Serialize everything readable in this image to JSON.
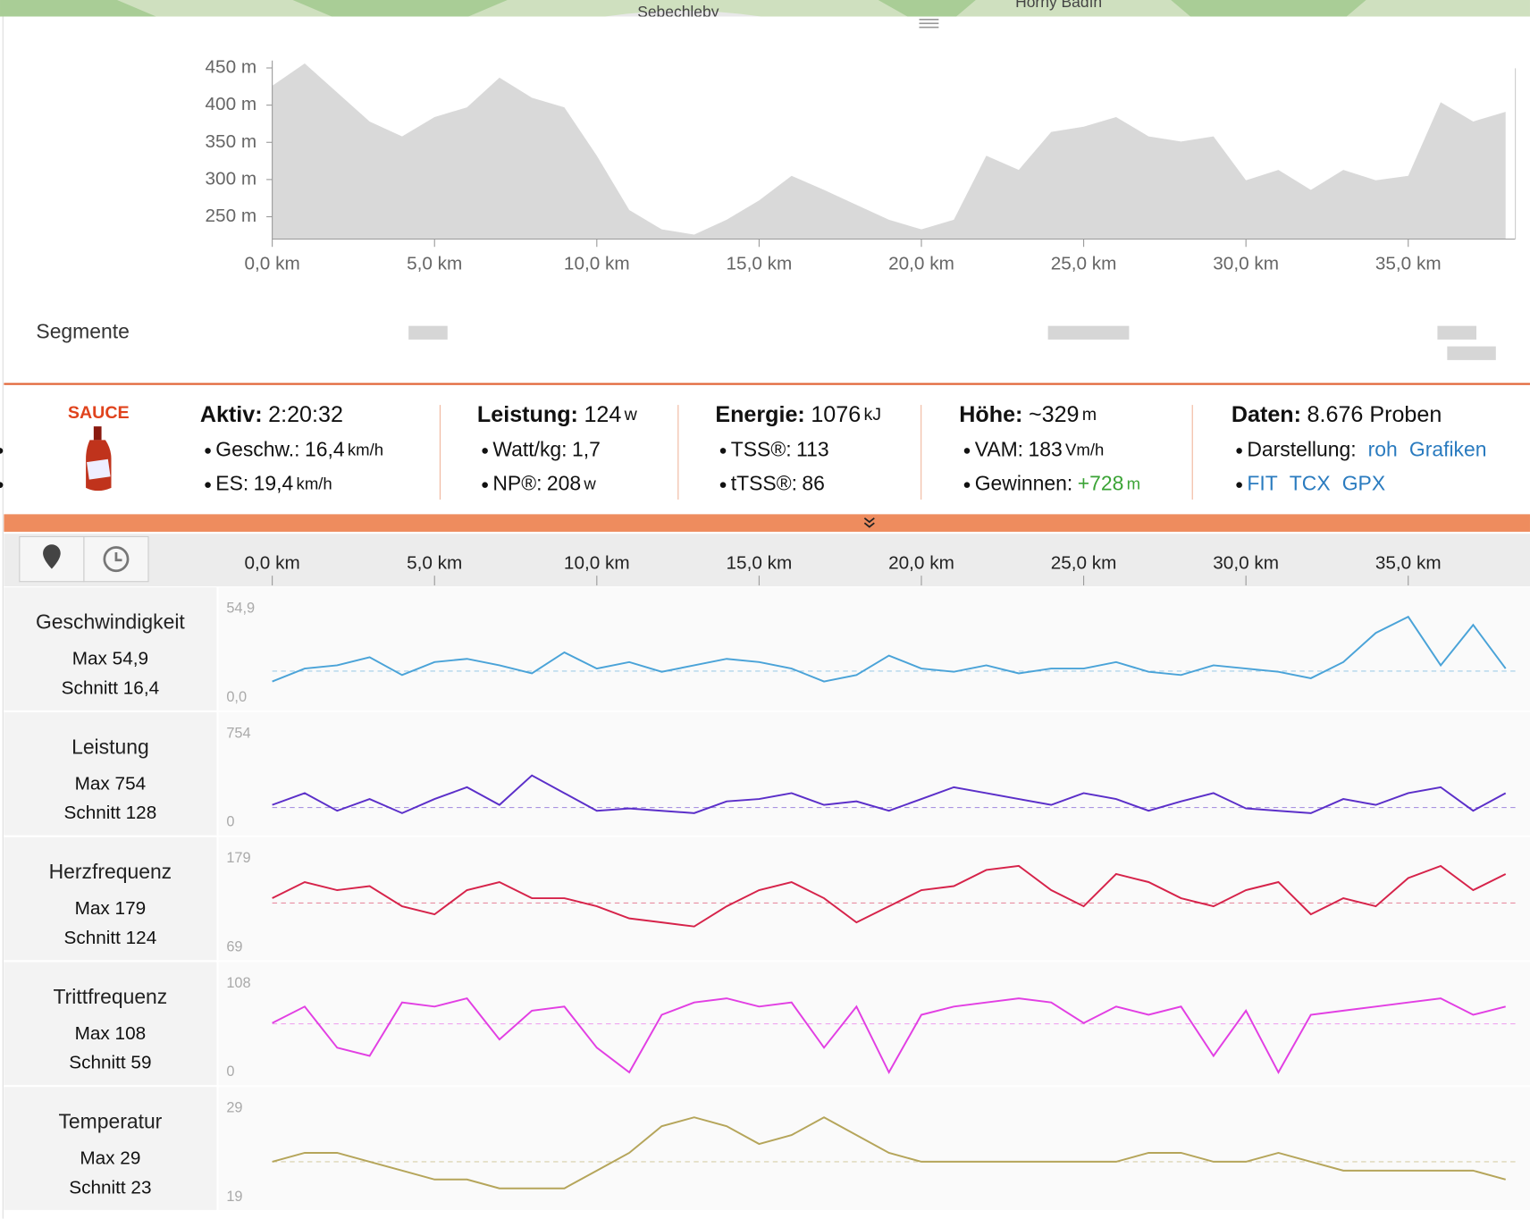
{
  "map": {
    "labels": [
      "Sebechleby",
      "Horný Badín"
    ]
  },
  "segments": {
    "title": "Segmente",
    "ranges": [
      [
        4.2,
        5.4
      ],
      [
        23.9,
        26.4
      ],
      [
        35.9,
        37.1
      ],
      [
        36.2,
        37.7
      ]
    ]
  },
  "stats": {
    "brand": "SAUCE",
    "groups": [
      {
        "title": "Aktiv:",
        "value": "2:20:32",
        "items": [
          {
            "label": "Geschw.:",
            "value": "16,4",
            "unit": "km/h"
          },
          {
            "label": "ES:",
            "value": "19,4",
            "unit": "km/h"
          }
        ]
      },
      {
        "title": "Leistung:",
        "value": "124",
        "unit": "w",
        "items": [
          {
            "label": "Watt/kg:",
            "value": "1,7"
          },
          {
            "label": "NP®:",
            "value": "208",
            "unit": "w"
          }
        ]
      },
      {
        "title": "Energie:",
        "value": "1076",
        "unit": "kJ",
        "items": [
          {
            "label": "TSS®:",
            "value": "113"
          },
          {
            "label": "tTSS®:",
            "value": "86"
          }
        ]
      },
      {
        "title": "Höhe:",
        "value": "~329",
        "unit": "m",
        "items": [
          {
            "label": "VAM:",
            "value": "183",
            "unit": "Vm/h"
          },
          {
            "label": "Gewinnen:",
            "value": "+728",
            "unit": "m",
            "color": "#3aa335"
          }
        ]
      },
      {
        "title": "Daten:",
        "value": "8.676 Proben",
        "items": [
          {
            "label": "Darstellung:",
            "links": [
              "roh",
              "Grafiken"
            ]
          },
          {
            "links": [
              "FIT",
              "TCX",
              "GPX"
            ]
          }
        ]
      }
    ]
  },
  "chart_data": [
    {
      "type": "area",
      "x": [
        0,
        1,
        2,
        3,
        4,
        5,
        6,
        7,
        8,
        9,
        10,
        11,
        12,
        13,
        14,
        15,
        16,
        17,
        18,
        19,
        20,
        21,
        22,
        23,
        24,
        25,
        26,
        27,
        28,
        29,
        30,
        31,
        32,
        33,
        34,
        35,
        36,
        37,
        38
      ],
      "series": [
        {
          "color": "#d9d9d9",
          "values": [
            426,
            456,
            417,
            378,
            358,
            384,
            397,
            437,
            410,
            397,
            332,
            259,
            233,
            226,
            246,
            272,
            305,
            286,
            266,
            246,
            233,
            246,
            332,
            313,
            364,
            371,
            384,
            358,
            351,
            358,
            299,
            313,
            286,
            313,
            299,
            305,
            404,
            378,
            391
          ]
        }
      ],
      "xlim": [
        0,
        38.3
      ],
      "ylim": [
        220,
        460
      ],
      "xticks": [
        {
          "value": 0,
          "label": "0,0 km"
        },
        {
          "value": 5,
          "label": "5,0 km"
        },
        {
          "value": 10,
          "label": "10,0 km"
        },
        {
          "value": 15,
          "label": "15,0 km"
        },
        {
          "value": 20,
          "label": "20,0 km"
        },
        {
          "value": 25,
          "label": "25,0 km"
        },
        {
          "value": 30,
          "label": "30,0 km"
        },
        {
          "value": 35,
          "label": "35,0 km"
        }
      ],
      "yticks": [
        {
          "value": 250,
          "label": "250 m"
        },
        {
          "value": 300,
          "label": "300 m"
        },
        {
          "value": 350,
          "label": "350 m"
        },
        {
          "value": 400,
          "label": "400 m"
        },
        {
          "value": 450,
          "label": "450 m"
        }
      ]
    },
    {
      "type": "line",
      "title": "Geschwindigkeit",
      "stats": [
        "Max 54,9",
        "Schnitt 16,4"
      ],
      "x": [
        0,
        1,
        2,
        3,
        4,
        5,
        6,
        7,
        8,
        9,
        10,
        11,
        12,
        13,
        14,
        15,
        16,
        17,
        18,
        19,
        20,
        21,
        22,
        23,
        24,
        25,
        26,
        27,
        28,
        29,
        30,
        31,
        32,
        33,
        34,
        35,
        36,
        37,
        38
      ],
      "series": [
        {
          "color": "#4aa3d8",
          "values": [
            10,
            18,
            20,
            25,
            14,
            22,
            24,
            20,
            15,
            28,
            18,
            22,
            16,
            20,
            24,
            22,
            18,
            10,
            14,
            26,
            18,
            16,
            20,
            15,
            18,
            18,
            22,
            16,
            14,
            20,
            18,
            16,
            12,
            22,
            40,
            50,
            20,
            45,
            18
          ]
        }
      ],
      "mean": 16.4,
      "xlim": [
        0,
        38.3
      ],
      "ylim": [
        0,
        54.9
      ],
      "yticks": [
        {
          "value": 0,
          "label": "0,0"
        },
        {
          "value": 54.9,
          "label": "54,9"
        }
      ]
    },
    {
      "type": "line",
      "title": "Leistung",
      "stats": [
        "Max 754",
        "Schnitt 128"
      ],
      "x": [
        0,
        1,
        2,
        3,
        4,
        5,
        6,
        7,
        8,
        9,
        10,
        11,
        12,
        13,
        14,
        15,
        16,
        17,
        18,
        19,
        20,
        21,
        22,
        23,
        24,
        25,
        26,
        27,
        28,
        29,
        30,
        31,
        32,
        33,
        34,
        35,
        36,
        37,
        38
      ],
      "series": [
        {
          "color": "#5b2fc9",
          "values": [
            150,
            250,
            100,
            200,
            80,
            200,
            300,
            150,
            400,
            250,
            100,
            120,
            100,
            80,
            180,
            200,
            250,
            150,
            180,
            100,
            200,
            300,
            250,
            200,
            150,
            250,
            200,
            100,
            180,
            250,
            120,
            100,
            80,
            200,
            150,
            250,
            300,
            100,
            250
          ]
        }
      ],
      "mean": 128,
      "xlim": [
        0,
        38.3
      ],
      "ylim": [
        0,
        754
      ],
      "yticks": [
        0,
        754
      ]
    },
    {
      "type": "line",
      "title": "Herzfrequenz",
      "stats": [
        "Max 179",
        "Schnitt 124"
      ],
      "x": [
        0,
        1,
        2,
        3,
        4,
        5,
        6,
        7,
        8,
        9,
        10,
        11,
        12,
        13,
        14,
        15,
        16,
        17,
        18,
        19,
        20,
        21,
        22,
        23,
        24,
        25,
        26,
        27,
        28,
        29,
        30,
        31,
        32,
        33,
        34,
        35,
        36,
        37,
        38
      ],
      "series": [
        {
          "color": "#d6234a",
          "values": [
            130,
            150,
            140,
            145,
            120,
            110,
            140,
            150,
            130,
            130,
            120,
            105,
            100,
            95,
            120,
            140,
            150,
            130,
            100,
            120,
            140,
            145,
            165,
            170,
            140,
            120,
            160,
            150,
            130,
            120,
            140,
            150,
            110,
            130,
            120,
            155,
            170,
            140,
            160
          ]
        }
      ],
      "mean": 124,
      "xlim": [
        0,
        38.3
      ],
      "ylim": [
        69,
        179
      ],
      "yticks": [
        69,
        179
      ]
    },
    {
      "type": "line",
      "title": "Trittfrequenz",
      "stats": [
        "Max 108",
        "Schnitt 59"
      ],
      "x": [
        0,
        1,
        2,
        3,
        4,
        5,
        6,
        7,
        8,
        9,
        10,
        11,
        12,
        13,
        14,
        15,
        16,
        17,
        18,
        19,
        20,
        21,
        22,
        23,
        24,
        25,
        26,
        27,
        28,
        29,
        30,
        31,
        32,
        33,
        34,
        35,
        36,
        37,
        38
      ],
      "series": [
        {
          "color": "#e23fe3",
          "values": [
            60,
            80,
            30,
            20,
            85,
            80,
            90,
            40,
            75,
            80,
            30,
            0,
            70,
            85,
            90,
            80,
            85,
            30,
            80,
            0,
            70,
            80,
            85,
            90,
            85,
            60,
            80,
            70,
            80,
            20,
            75,
            0,
            70,
            75,
            80,
            85,
            90,
            70,
            80
          ]
        }
      ],
      "mean": 59,
      "xlim": [
        0,
        38.3
      ],
      "ylim": [
        0,
        108
      ],
      "yticks": [
        0,
        108
      ]
    },
    {
      "type": "line",
      "title": "Temperatur",
      "stats": [
        "Max 29",
        "Schnitt 23"
      ],
      "x": [
        0,
        1,
        2,
        3,
        4,
        5,
        6,
        7,
        8,
        9,
        10,
        11,
        12,
        13,
        14,
        15,
        16,
        17,
        18,
        19,
        20,
        21,
        22,
        23,
        24,
        25,
        26,
        27,
        28,
        29,
        30,
        31,
        32,
        33,
        34,
        35,
        36,
        37,
        38
      ],
      "series": [
        {
          "color": "#b5a55a",
          "values": [
            23,
            24,
            24,
            23,
            22,
            21,
            21,
            20,
            20,
            20,
            22,
            24,
            27,
            28,
            27,
            25,
            26,
            28,
            26,
            24,
            23,
            23,
            23,
            23,
            23,
            23,
            23,
            24,
            24,
            23,
            23,
            24,
            23,
            22,
            22,
            22,
            22,
            22,
            21
          ]
        }
      ],
      "mean": 23,
      "xlim": [
        0,
        38.3
      ],
      "ylim": [
        19,
        29
      ],
      "yticks": [
        19,
        29
      ]
    }
  ]
}
